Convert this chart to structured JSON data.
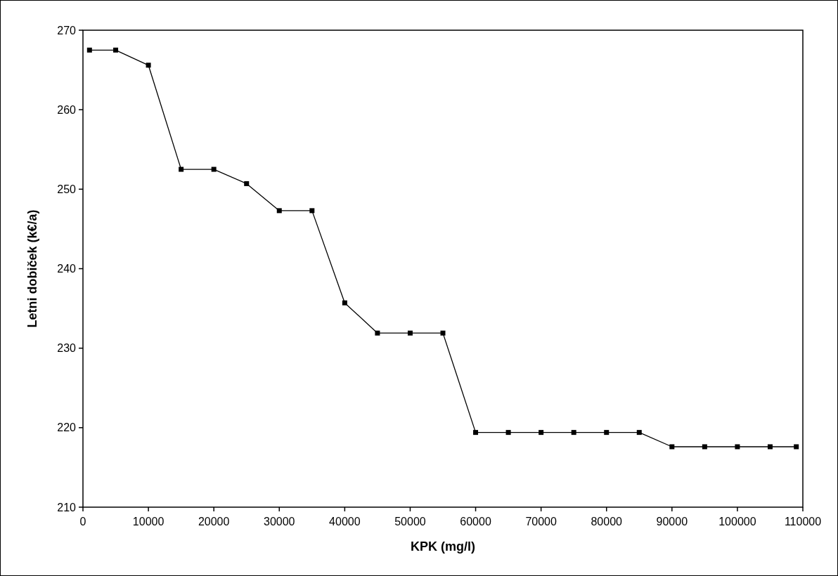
{
  "chart_data": {
    "type": "line",
    "xlabel": "KPK (mg/l)",
    "ylabel": "Letni dobiček (k€/a)",
    "x": [
      1000,
      5000,
      10000,
      15000,
      20000,
      25000,
      30000,
      35000,
      40000,
      45000,
      50000,
      55000,
      60000,
      65000,
      70000,
      75000,
      80000,
      85000,
      90000,
      95000,
      100000,
      105000,
      109000
    ],
    "series": [
      {
        "color": "#000000",
        "values": [
          267.5,
          267.5,
          265.6,
          252.5,
          252.5,
          250.7,
          247.3,
          247.3,
          235.7,
          231.9,
          231.9,
          231.9,
          219.4,
          219.4,
          219.4,
          219.4,
          219.4,
          219.4,
          217.6,
          217.6,
          217.6,
          217.6,
          217.6
        ]
      }
    ],
    "xlim": [
      0,
      110000
    ],
    "xticks": [
      0,
      10000,
      20000,
      30000,
      40000,
      50000,
      60000,
      70000,
      80000,
      90000,
      100000,
      110000
    ],
    "ylim": [
      210,
      270
    ],
    "yticks": [
      210,
      220,
      230,
      240,
      250,
      260,
      270
    ],
    "grid": false,
    "marker": "square",
    "line_style": "solid"
  }
}
